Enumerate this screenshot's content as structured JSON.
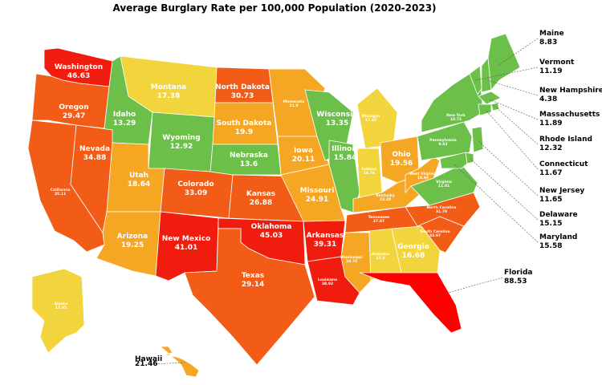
{
  "chart_data": {
    "type": "choropleth",
    "title": "Average Burglary Rate per 100,000 Population (2020-2023)",
    "color_scale": [
      "#6cc04a",
      "#f2d43d",
      "#f5a623",
      "#f25c17",
      "#f01d0e",
      "#ff0000"
    ],
    "states": [
      {
        "name": "Washington",
        "value": "46.63"
      },
      {
        "name": "Oregon",
        "value": "29.47"
      },
      {
        "name": "California",
        "value": "25.11"
      },
      {
        "name": "Idaho",
        "value": "13.29"
      },
      {
        "name": "Nevada",
        "value": "34.88"
      },
      {
        "name": "Montana",
        "value": "17.38"
      },
      {
        "name": "Wyoming",
        "value": "12.92"
      },
      {
        "name": "Utah",
        "value": "18.64"
      },
      {
        "name": "Arizona",
        "value": "19.25"
      },
      {
        "name": "Colorado",
        "value": "33.09"
      },
      {
        "name": "New Mexico",
        "value": "41.01"
      },
      {
        "name": "North Dakota",
        "value": "30.73"
      },
      {
        "name": "South Dakota",
        "value": "19.9"
      },
      {
        "name": "Nebraska",
        "value": "13.6"
      },
      {
        "name": "Kansas",
        "value": "26.88"
      },
      {
        "name": "Oklahoma",
        "value": "45.03"
      },
      {
        "name": "Texas",
        "value": "29.14"
      },
      {
        "name": "Minnesota",
        "value": "21.0"
      },
      {
        "name": "Iowa",
        "value": "20.11"
      },
      {
        "name": "Missouri",
        "value": "24.91"
      },
      {
        "name": "Arkansas",
        "value": "39.31"
      },
      {
        "name": "Louisiana",
        "value": "38.92"
      },
      {
        "name": "Wisconsin",
        "value": "13.35"
      },
      {
        "name": "Illinois",
        "value": "15.84"
      },
      {
        "name": "Michigan",
        "value": "17.65"
      },
      {
        "name": "Indiana",
        "value": "16.76"
      },
      {
        "name": "Ohio",
        "value": "19.56"
      },
      {
        "name": "Kentucky",
        "value": "23.28"
      },
      {
        "name": "Tennessee",
        "value": "27.87"
      },
      {
        "name": "Mississippi",
        "value": "18.74"
      },
      {
        "name": "Alabama",
        "value": "17.2"
      },
      {
        "name": "Georgia",
        "value": "16.68"
      },
      {
        "name": "Florida",
        "value": "88.53"
      },
      {
        "name": "South Carolina",
        "value": "33.97"
      },
      {
        "name": "North Carolina",
        "value": "31.79"
      },
      {
        "name": "Virginia",
        "value": "11.01"
      },
      {
        "name": "West Virginia",
        "value": "18.98"
      },
      {
        "name": "Pennsylvania",
        "value": "9.43"
      },
      {
        "name": "New York",
        "value": "10.71"
      },
      {
        "name": "Vermont",
        "value": "11.19"
      },
      {
        "name": "New Hampshire",
        "value": "4.38"
      },
      {
        "name": "Maine",
        "value": "8.83"
      },
      {
        "name": "Massachusetts",
        "value": "11.89"
      },
      {
        "name": "Rhode Island",
        "value": "12.32"
      },
      {
        "name": "Connecticut",
        "value": "11.67"
      },
      {
        "name": "New Jersey",
        "value": "11.65"
      },
      {
        "name": "Delaware",
        "value": "15.15"
      },
      {
        "name": "Maryland",
        "value": "15.58"
      },
      {
        "name": "Alaska",
        "value": "17.05"
      },
      {
        "name": "Hawaii",
        "value": "21.46"
      }
    ]
  }
}
